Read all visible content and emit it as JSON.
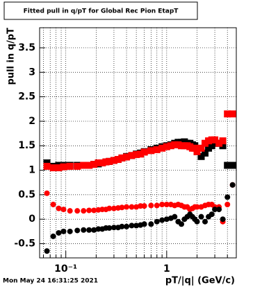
{
  "chart_data": {
    "type": "scatter",
    "title": "Fitted pull in q/pT for Global Rec Pion EtapT",
    "y_label": "pull in q/pT",
    "x_label": "pT/|q| (GeV/c)",
    "timestamp": "Mon May 24 16:31:25 2021",
    "log_x": true,
    "grid": true,
    "xlim": [
      0.055,
      4.9
    ],
    "ylim": [
      -0.79,
      3.91
    ],
    "xticks": [
      {
        "value": 0.1,
        "label": "10⁻¹"
      },
      1
    ],
    "xminorticks": [
      0.06,
      0.07,
      0.08,
      0.09,
      0.2,
      0.3,
      0.4,
      0.5,
      0.6,
      0.7,
      0.8,
      0.9,
      2,
      3,
      4
    ],
    "yticks": [
      -0.5,
      0,
      0.5,
      1,
      {
        "value": 1.5,
        "label": "1.5"
      },
      2,
      2.5,
      3,
      3.5
    ],
    "x": [
      0.065,
      0.075,
      0.085,
      0.095,
      0.11,
      0.13,
      0.15,
      0.17,
      0.19,
      0.21,
      0.23,
      0.25,
      0.27,
      0.3,
      0.33,
      0.36,
      0.4,
      0.45,
      0.5,
      0.55,
      0.6,
      0.7,
      0.8,
      0.9,
      1.0,
      1.1,
      1.2,
      1.3,
      1.4,
      1.5,
      1.6,
      1.7,
      1.8,
      1.9,
      2.0,
      2.2,
      2.4,
      2.6,
      2.8,
      3.0,
      3.3,
      3.6,
      4.0,
      4.5
    ],
    "series": [
      {
        "color": "#000000",
        "marker": "square",
        "values": [
          1.15,
          1.08,
          1.1,
          1.1,
          1.1,
          1.1,
          1.1,
          1.1,
          1.12,
          1.13,
          1.15,
          1.17,
          1.18,
          1.2,
          1.22,
          1.25,
          1.28,
          1.3,
          1.33,
          1.35,
          1.38,
          1.42,
          1.45,
          1.48,
          1.5,
          1.52,
          1.55,
          1.57,
          1.57,
          1.58,
          1.55,
          1.55,
          1.52,
          1.5,
          1.38,
          1.28,
          1.35,
          1.45,
          1.5,
          1.55,
          1.55,
          1.5,
          1.1,
          1.1
        ]
      },
      {
        "color": "#ff0000",
        "marker": "square",
        "values": [
          1.08,
          1.05,
          1.05,
          1.07,
          1.08,
          1.08,
          1.1,
          1.1,
          1.12,
          1.15,
          1.15,
          1.17,
          1.18,
          1.2,
          1.22,
          1.25,
          1.27,
          1.3,
          1.32,
          1.33,
          1.37,
          1.4,
          1.42,
          1.45,
          1.48,
          1.5,
          1.52,
          1.52,
          1.5,
          1.5,
          1.5,
          1.48,
          1.45,
          1.45,
          1.38,
          1.45,
          1.55,
          1.6,
          1.62,
          1.62,
          1.55,
          1.6,
          2.15,
          2.15
        ]
      },
      {
        "color": "#ff0000",
        "marker": "circle",
        "values": [
          0.53,
          0.3,
          0.22,
          0.2,
          0.17,
          0.17,
          0.17,
          0.18,
          0.18,
          0.19,
          0.2,
          0.2,
          0.22,
          0.22,
          0.23,
          0.24,
          0.25,
          0.25,
          0.25,
          0.27,
          0.27,
          0.28,
          0.28,
          0.3,
          0.3,
          0.3,
          0.28,
          0.3,
          0.28,
          0.25,
          0.25,
          0.2,
          0.22,
          0.25,
          0.25,
          0.25,
          0.28,
          0.3,
          0.3,
          0.25,
          0.25,
          -0.05,
          0.3,
          0.7
        ]
      },
      {
        "color": "#000000",
        "marker": "circle",
        "values": [
          -0.65,
          -0.35,
          -0.28,
          -0.25,
          -0.25,
          -0.23,
          -0.22,
          -0.22,
          -0.22,
          -0.2,
          -0.2,
          -0.18,
          -0.18,
          -0.17,
          -0.17,
          -0.15,
          -0.15,
          -0.13,
          -0.13,
          -0.12,
          -0.1,
          -0.1,
          -0.05,
          -0.02,
          0,
          0.02,
          0.05,
          -0.05,
          -0.1,
          0,
          0.05,
          0.1,
          0.05,
          0,
          -0.05,
          0.05,
          -0.05,
          0.05,
          0.1,
          0.2,
          0.2,
          0,
          0.45,
          0.7
        ]
      }
    ]
  }
}
